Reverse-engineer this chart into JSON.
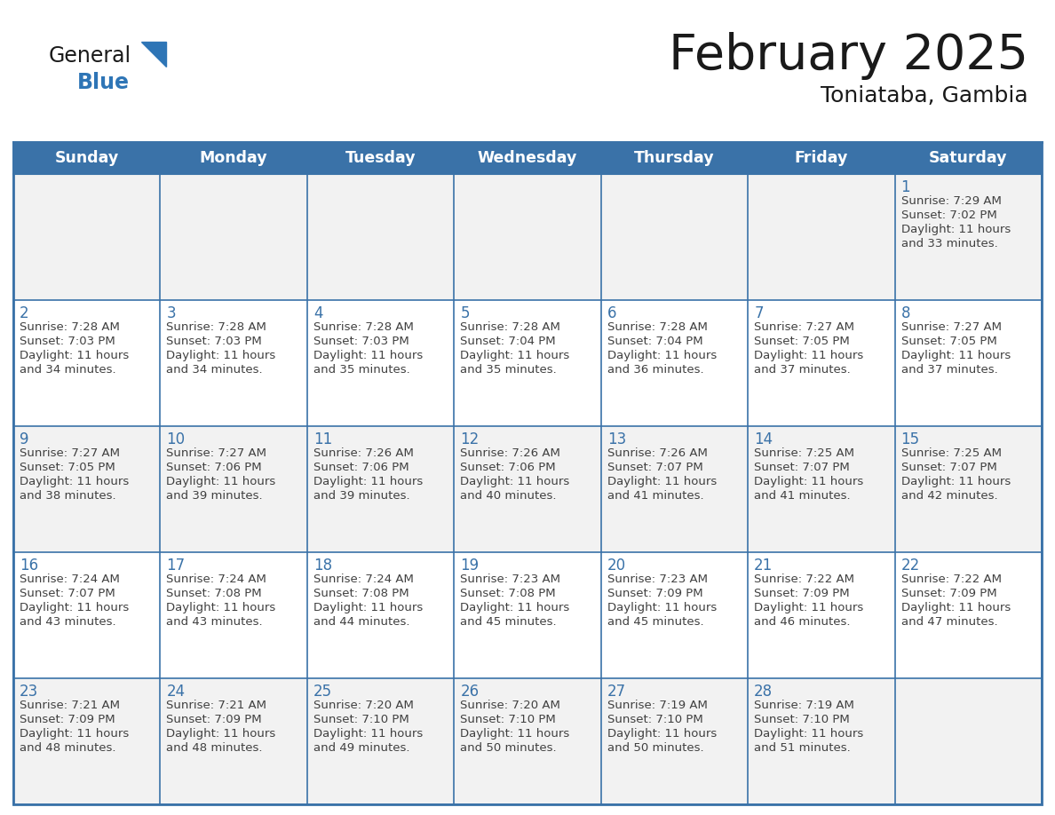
{
  "title": "February 2025",
  "subtitle": "Toniataba, Gambia",
  "days_of_week": [
    "Sunday",
    "Monday",
    "Tuesday",
    "Wednesday",
    "Thursday",
    "Friday",
    "Saturday"
  ],
  "header_bg": "#3A72A8",
  "header_text": "#FFFFFF",
  "cell_bg_white": "#FFFFFF",
  "cell_bg_gray": "#F2F2F2",
  "border_color": "#4472a8",
  "row_border_color": "#3A72A8",
  "day_num_color": "#3A72A8",
  "text_color": "#404040",
  "title_color": "#1a1a1a",
  "logo_black": "#1a1a1a",
  "logo_blue": "#2E75B6",
  "calendar_data": [
    [
      null,
      null,
      null,
      null,
      null,
      null,
      {
        "day": 1,
        "sunrise": "7:29 AM",
        "sunset": "7:02 PM",
        "daylight": "11 hours\nand 33 minutes."
      }
    ],
    [
      {
        "day": 2,
        "sunrise": "7:28 AM",
        "sunset": "7:03 PM",
        "daylight": "11 hours\nand 34 minutes."
      },
      {
        "day": 3,
        "sunrise": "7:28 AM",
        "sunset": "7:03 PM",
        "daylight": "11 hours\nand 34 minutes."
      },
      {
        "day": 4,
        "sunrise": "7:28 AM",
        "sunset": "7:03 PM",
        "daylight": "11 hours\nand 35 minutes."
      },
      {
        "day": 5,
        "sunrise": "7:28 AM",
        "sunset": "7:04 PM",
        "daylight": "11 hours\nand 35 minutes."
      },
      {
        "day": 6,
        "sunrise": "7:28 AM",
        "sunset": "7:04 PM",
        "daylight": "11 hours\nand 36 minutes."
      },
      {
        "day": 7,
        "sunrise": "7:27 AM",
        "sunset": "7:05 PM",
        "daylight": "11 hours\nand 37 minutes."
      },
      {
        "day": 8,
        "sunrise": "7:27 AM",
        "sunset": "7:05 PM",
        "daylight": "11 hours\nand 37 minutes."
      }
    ],
    [
      {
        "day": 9,
        "sunrise": "7:27 AM",
        "sunset": "7:05 PM",
        "daylight": "11 hours\nand 38 minutes."
      },
      {
        "day": 10,
        "sunrise": "7:27 AM",
        "sunset": "7:06 PM",
        "daylight": "11 hours\nand 39 minutes."
      },
      {
        "day": 11,
        "sunrise": "7:26 AM",
        "sunset": "7:06 PM",
        "daylight": "11 hours\nand 39 minutes."
      },
      {
        "day": 12,
        "sunrise": "7:26 AM",
        "sunset": "7:06 PM",
        "daylight": "11 hours\nand 40 minutes."
      },
      {
        "day": 13,
        "sunrise": "7:26 AM",
        "sunset": "7:07 PM",
        "daylight": "11 hours\nand 41 minutes."
      },
      {
        "day": 14,
        "sunrise": "7:25 AM",
        "sunset": "7:07 PM",
        "daylight": "11 hours\nand 41 minutes."
      },
      {
        "day": 15,
        "sunrise": "7:25 AM",
        "sunset": "7:07 PM",
        "daylight": "11 hours\nand 42 minutes."
      }
    ],
    [
      {
        "day": 16,
        "sunrise": "7:24 AM",
        "sunset": "7:07 PM",
        "daylight": "11 hours\nand 43 minutes."
      },
      {
        "day": 17,
        "sunrise": "7:24 AM",
        "sunset": "7:08 PM",
        "daylight": "11 hours\nand 43 minutes."
      },
      {
        "day": 18,
        "sunrise": "7:24 AM",
        "sunset": "7:08 PM",
        "daylight": "11 hours\nand 44 minutes."
      },
      {
        "day": 19,
        "sunrise": "7:23 AM",
        "sunset": "7:08 PM",
        "daylight": "11 hours\nand 45 minutes."
      },
      {
        "day": 20,
        "sunrise": "7:23 AM",
        "sunset": "7:09 PM",
        "daylight": "11 hours\nand 45 minutes."
      },
      {
        "day": 21,
        "sunrise": "7:22 AM",
        "sunset": "7:09 PM",
        "daylight": "11 hours\nand 46 minutes."
      },
      {
        "day": 22,
        "sunrise": "7:22 AM",
        "sunset": "7:09 PM",
        "daylight": "11 hours\nand 47 minutes."
      }
    ],
    [
      {
        "day": 23,
        "sunrise": "7:21 AM",
        "sunset": "7:09 PM",
        "daylight": "11 hours\nand 48 minutes."
      },
      {
        "day": 24,
        "sunrise": "7:21 AM",
        "sunset": "7:09 PM",
        "daylight": "11 hours\nand 48 minutes."
      },
      {
        "day": 25,
        "sunrise": "7:20 AM",
        "sunset": "7:10 PM",
        "daylight": "11 hours\nand 49 minutes."
      },
      {
        "day": 26,
        "sunrise": "7:20 AM",
        "sunset": "7:10 PM",
        "daylight": "11 hours\nand 50 minutes."
      },
      {
        "day": 27,
        "sunrise": "7:19 AM",
        "sunset": "7:10 PM",
        "daylight": "11 hours\nand 50 minutes."
      },
      {
        "day": 28,
        "sunrise": "7:19 AM",
        "sunset": "7:10 PM",
        "daylight": "11 hours\nand 51 minutes."
      },
      null
    ]
  ]
}
